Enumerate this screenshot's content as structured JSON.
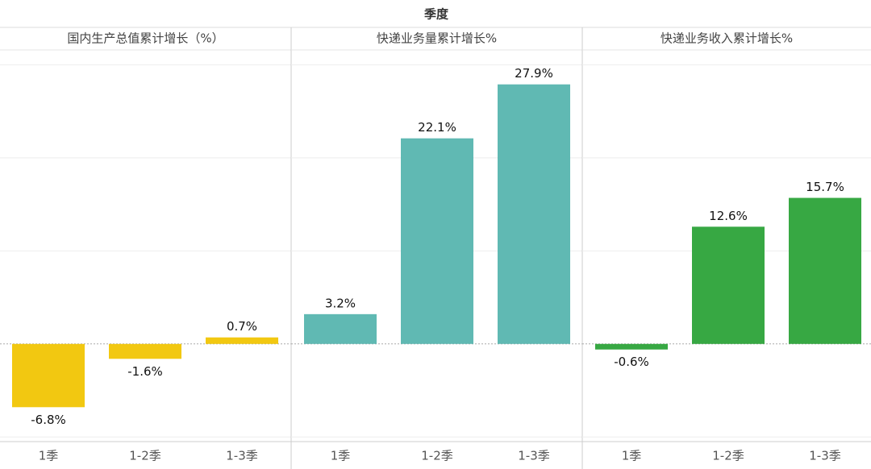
{
  "header": "季度",
  "chart_data": [
    {
      "type": "bar",
      "title": "国内生产总值累计增长（%）",
      "categories": [
        "1季",
        "1-2季",
        "1-3季"
      ],
      "values": [
        -6.8,
        -1.6,
        0.7
      ],
      "value_labels": [
        "-6.8%",
        "-1.6%",
        "0.7%"
      ],
      "color": "#f2c811",
      "ylim": [
        -10.5,
        31.6
      ],
      "yticks": [
        -10,
        0,
        10,
        20,
        30
      ],
      "grid": true
    },
    {
      "type": "bar",
      "title": "快递业务量累计增长%",
      "categories": [
        "1季",
        "1-2季",
        "1-3季"
      ],
      "values": [
        3.2,
        22.1,
        27.9
      ],
      "value_labels": [
        "3.2%",
        "22.1%",
        "27.9%"
      ],
      "color": "#60b9b3",
      "ylim": [
        -10.5,
        31.6
      ],
      "yticks": [
        -10,
        0,
        10,
        20,
        30
      ],
      "grid": true
    },
    {
      "type": "bar",
      "title": "快递业务收入累计增长%",
      "categories": [
        "1季",
        "1-2季",
        "1-3季"
      ],
      "values": [
        -0.6,
        12.6,
        15.7
      ],
      "value_labels": [
        "-0.6%",
        "12.6%",
        "15.7%"
      ],
      "color": "#37a843",
      "ylim": [
        -10.5,
        31.6
      ],
      "yticks": [
        -10,
        0,
        10,
        20,
        30
      ],
      "grid": true
    }
  ]
}
